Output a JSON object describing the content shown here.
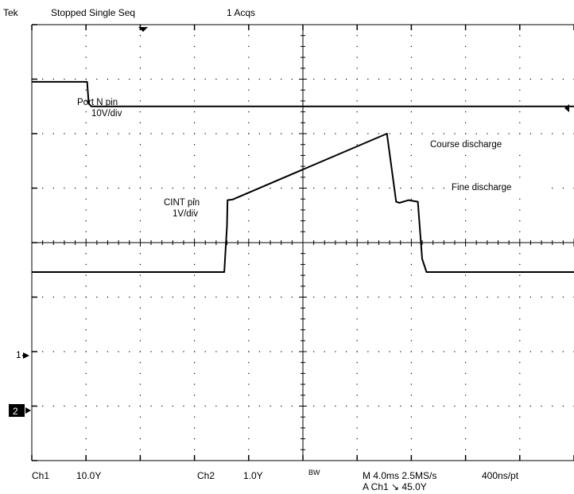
{
  "header": {
    "brand": "Tek",
    "status": "Stopped  Single Seq",
    "acqs": "1 Acqs"
  },
  "footer": {
    "ch1_label": "Ch1",
    "ch1_scale": "10.0Y",
    "ch2_label": "Ch2",
    "ch2_scale": "1.0Y",
    "bw": "BW",
    "timebase": "M 4.0ms 2.5MS/s",
    "resolution": "400ns/pt",
    "trigger": "A  Ch1  ↘  45.0Y"
  },
  "markers": {
    "ch1": "1",
    "ch2": "2"
  },
  "annotations": {
    "port_line1": "Port N pin",
    "port_line2": "10V/div",
    "cint_line1": "CINT pin",
    "cint_line2": "1V/div",
    "course": "Course discharge",
    "fine": "Fine discharge"
  },
  "colors": {
    "trace": "#000000",
    "graticule": "#000000",
    "background": "#ffffff"
  },
  "chart_data": {
    "type": "line",
    "title": "",
    "xlabel": "",
    "ylabel": "",
    "x_divisions": 10,
    "y_divisions": 8,
    "x_unit": "div",
    "y_unit": "div",
    "grid": true,
    "series": [
      {
        "name": "Port N pin",
        "channel": "Ch1",
        "scale": "10V/div",
        "points": [
          [
            0,
            6.95
          ],
          [
            1.02,
            6.95
          ],
          [
            1.05,
            6.55
          ],
          [
            1.1,
            6.5
          ],
          [
            10,
            6.5
          ]
        ]
      },
      {
        "name": "CINT pin",
        "channel": "Ch2",
        "scale": "1V/div",
        "points": [
          [
            0,
            3.46
          ],
          [
            3.55,
            3.46
          ],
          [
            3.6,
            4.3
          ],
          [
            3.61,
            4.78
          ],
          [
            3.7,
            4.79
          ],
          [
            6.55,
            6.0
          ],
          [
            6.72,
            4.75
          ],
          [
            6.78,
            4.73
          ],
          [
            6.95,
            4.78
          ],
          [
            7.12,
            4.75
          ],
          [
            7.2,
            3.7
          ],
          [
            7.28,
            3.46
          ],
          [
            10,
            3.46
          ]
        ]
      }
    ],
    "annotations": [
      "Port N pin",
      "10V/div",
      "CINT pin",
      "1V/div",
      "Course discharge",
      "Fine discharge"
    ]
  }
}
